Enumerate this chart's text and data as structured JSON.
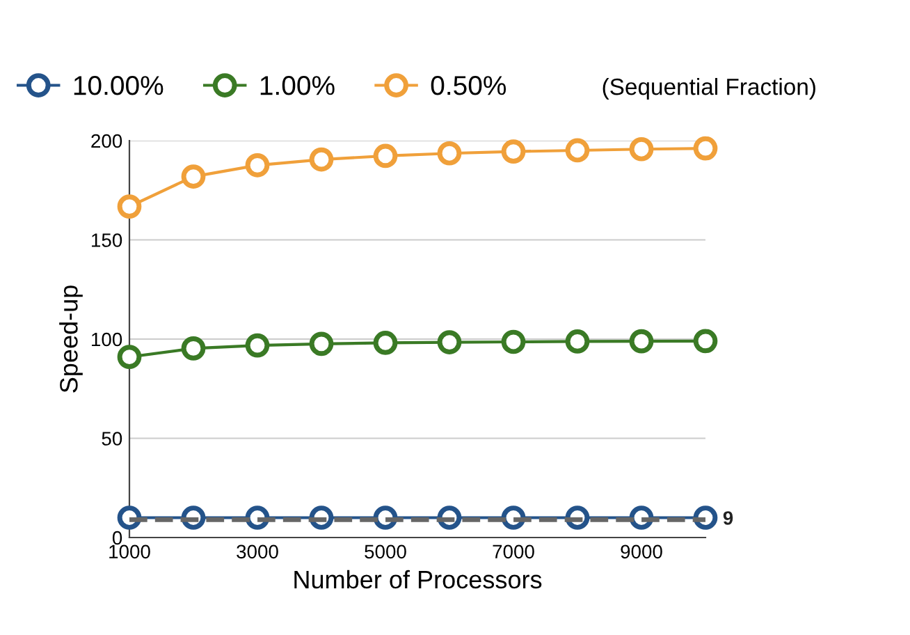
{
  "chart_data": {
    "type": "line",
    "xlabel": "Number of Processors",
    "ylabel": "Speed-up",
    "legend_title": "(Sequential Fraction)",
    "x": [
      1000,
      2000,
      3000,
      4000,
      5000,
      6000,
      7000,
      8000,
      9000,
      10000
    ],
    "series": [
      {
        "name": "10.00%",
        "color": "#24538a",
        "values": [
          10,
          10,
          10,
          10,
          10,
          10,
          10,
          10,
          10,
          10
        ]
      },
      {
        "name": "1.00%",
        "color": "#3a7a25",
        "values": [
          91,
          95.3,
          96.8,
          97.6,
          98.1,
          98.4,
          98.6,
          98.8,
          98.9,
          99
        ]
      },
      {
        "name": "0.50%",
        "color": "#f0a03a",
        "values": [
          166.8,
          181.9,
          187.6,
          190.5,
          192.3,
          193.6,
          194.5,
          195.1,
          195.7,
          196.1
        ]
      }
    ],
    "xlim": [
      1000,
      10000
    ],
    "xticks": [
      1000,
      3000,
      5000,
      7000,
      9000
    ],
    "ylim": [
      0,
      200
    ],
    "yticks": [
      0,
      50,
      100,
      150,
      200
    ],
    "ref_lines": [
      {
        "axis": "y",
        "value": 9,
        "label": "9",
        "color": "#666666",
        "line_style": "dashed"
      }
    ],
    "grid": "y",
    "legend": "top",
    "marker": "circle",
    "line_style": "solid"
  }
}
